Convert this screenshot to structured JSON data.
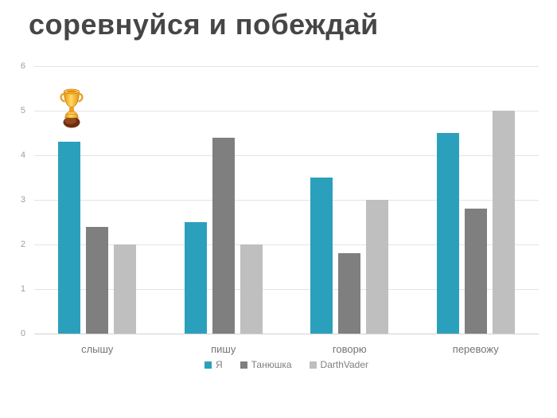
{
  "chart_data": {
    "type": "bar",
    "title": "соревнуйся и побеждай",
    "categories": [
      "слышу",
      "пишу",
      "говорю",
      "перевожу"
    ],
    "series": [
      {
        "name": "Я",
        "color": "#2BA0BC",
        "values": [
          4.3,
          2.5,
          3.5,
          4.5
        ]
      },
      {
        "name": "Танюшка",
        "color": "#7F7F7F",
        "values": [
          2.4,
          4.4,
          1.8,
          2.8
        ]
      },
      {
        "name": "DarthVader",
        "color": "#BFBFBF",
        "values": [
          2.0,
          2.0,
          3.0,
          5.0
        ]
      }
    ],
    "ylim": [
      0,
      6
    ],
    "y_ticks": [
      6,
      5,
      4,
      3,
      2,
      1,
      0
    ],
    "xlabel": "",
    "ylabel": "",
    "grid": true,
    "legend_position": "bottom",
    "annotations": [
      {
        "type": "trophy-icon",
        "target_series": "Я",
        "target_category": "слышу"
      }
    ],
    "colors": {
      "background": "#FFFFFF",
      "title_text": "#464646",
      "y_axis_text": "#9E9E9E",
      "category_text": "#757575",
      "legend_text": "#808080",
      "gridline": "#E3E3E3"
    }
  }
}
